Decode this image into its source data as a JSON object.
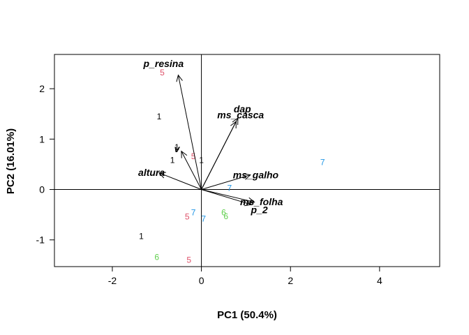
{
  "chart_data": {
    "type": "scatter",
    "subtype": "pca-biplot",
    "title": "",
    "xlabel": "PC1 (50.4%)",
    "ylabel": "PC2 (16.01%)",
    "xlim": [
      -3.3,
      5.35
    ],
    "ylim": [
      -1.53,
      2.68
    ],
    "x_ticks": [
      -2,
      0,
      2,
      4
    ],
    "y_ticks": [
      -1,
      0,
      1,
      2
    ],
    "grid": false,
    "reference_lines": {
      "horizontal_at": 0,
      "vertical_at": 0
    },
    "colors": {
      "1": "#000000",
      "5": "#DF536B",
      "6": "#61D04F",
      "7": "#2297E6",
      "arrow": "#000000"
    },
    "observations": [
      {
        "label": "1",
        "group": "1",
        "x": -0.95,
        "y": 1.45
      },
      {
        "label": "1",
        "group": "1",
        "x": -0.65,
        "y": 0.58
      },
      {
        "label": "1",
        "group": "1",
        "x": -1.35,
        "y": -0.93
      },
      {
        "label": "1",
        "group": "1",
        "x": -0.55,
        "y": 0.84
      },
      {
        "label": "1",
        "group": "1",
        "x": 0.0,
        "y": 0.58
      },
      {
        "label": "5",
        "group": "5",
        "x": -0.88,
        "y": 2.32
      },
      {
        "label": "5",
        "group": "5",
        "x": -0.18,
        "y": 0.66
      },
      {
        "label": "5",
        "group": "5",
        "x": -0.32,
        "y": -0.54
      },
      {
        "label": "5",
        "group": "5",
        "x": -0.28,
        "y": -1.4
      },
      {
        "label": "6",
        "group": "6",
        "x": 0.5,
        "y": -0.46
      },
      {
        "label": "6",
        "group": "6",
        "x": 0.55,
        "y": -0.53
      },
      {
        "label": "6",
        "group": "6",
        "x": -1.0,
        "y": -1.34
      },
      {
        "label": "7",
        "group": "7",
        "x": 2.72,
        "y": 0.54
      },
      {
        "label": "7",
        "group": "7",
        "x": 0.63,
        "y": 0.03
      },
      {
        "label": "7",
        "group": "7",
        "x": -0.18,
        "y": -0.46
      },
      {
        "label": "7",
        "group": "7",
        "x": 0.05,
        "y": -0.58
      }
    ],
    "variables": [
      {
        "name": "p_resina",
        "x": -0.52,
        "y": 2.27,
        "label_x": -0.85,
        "label_y": 2.5
      },
      {
        "name": "dap",
        "x": 0.82,
        "y": 1.42,
        "label_x": 0.92,
        "label_y": 1.6
      },
      {
        "name": "ms_casca",
        "x": 0.78,
        "y": 1.35,
        "label_x": 0.88,
        "label_y": 1.48
      },
      {
        "name": "v",
        "x": -0.45,
        "y": 0.76,
        "label_x": -0.55,
        "label_y": 0.81
      },
      {
        "name": "altura",
        "x": -0.95,
        "y": 0.33,
        "label_x": -1.12,
        "label_y": 0.34
      },
      {
        "name": "ms_galho",
        "x": 1.1,
        "y": 0.29,
        "label_x": 1.22,
        "label_y": 0.29
      },
      {
        "name": "ms_folha",
        "x": 1.19,
        "y": -0.25,
        "label_x": 1.35,
        "label_y": -0.24
      },
      {
        "name": "p_2",
        "x": 1.12,
        "y": -0.3,
        "label_x": 1.3,
        "label_y": -0.4
      }
    ]
  }
}
